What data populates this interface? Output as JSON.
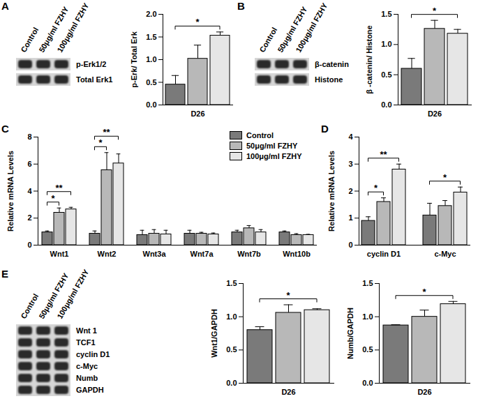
{
  "panel_labels": [
    "A",
    "B",
    "C",
    "D",
    "E"
  ],
  "blots": [
    {
      "lanes": [
        "Control",
        "50μg/ml FZHY",
        "100μg/ml FZHY"
      ],
      "bands": [
        "p-Erk1/2",
        "Total Erk1"
      ]
    },
    {
      "lanes": [
        "Control",
        "50μg/ml FZHY",
        "100μg/ml FZHY"
      ],
      "bands": [
        "β-catenin",
        "Histone"
      ]
    },
    {
      "lanes": [
        "Control",
        "50μg/ml FZHY",
        "100μg/ml FZHY"
      ],
      "bands": [
        "Wnt 1",
        "TCF1",
        "cyclin D1",
        "c-Myc",
        "Numb",
        "GAPDH"
      ]
    }
  ],
  "chart_data": [
    {
      "type": "bar",
      "ylabel": "p-Erk/ Total Erk",
      "categories": [
        "D26"
      ],
      "series": [
        {
          "name": "Control",
          "color": "#7a7a7a",
          "values": [
            0.45
          ],
          "errors": [
            0.2
          ]
        },
        {
          "name": "50μg/ml FZHY",
          "color": "#b8b8b8",
          "values": [
            1.02
          ],
          "errors": [
            0.3
          ]
        },
        {
          "name": "100μg/ml FZHY",
          "color": "#e6e6e6",
          "values": [
            1.53
          ],
          "errors": [
            0.08
          ]
        }
      ],
      "ylim": [
        0,
        2
      ],
      "yticks": [
        {
          "value": 0,
          "label": "0.0"
        },
        {
          "value": 0.5,
          "label": "0.5"
        },
        {
          "value": 1,
          "label": "1.0"
        },
        {
          "value": 1.5,
          "label": "1.5"
        },
        {
          "value": 2,
          "label": "2.0"
        }
      ],
      "annotations": [
        {
          "category": "D26",
          "from": "Control",
          "to": "100μg/ml FZHY",
          "label": "*"
        }
      ]
    },
    {
      "type": "bar",
      "ylabel": "β -catenin/ Histone",
      "categories": [
        "D26"
      ],
      "series": [
        {
          "name": "Control",
          "color": "#7a7a7a",
          "values": [
            0.6
          ],
          "errors": [
            0.17
          ]
        },
        {
          "name": "50μg/ml FZHY",
          "color": "#b8b8b8",
          "values": [
            1.26
          ],
          "errors": [
            0.14
          ]
        },
        {
          "name": "100μg/ml FZHY",
          "color": "#e6e6e6",
          "values": [
            1.18
          ],
          "errors": [
            0.07
          ]
        }
      ],
      "ylim": [
        0,
        1.5
      ],
      "yticks": [
        {
          "value": 0,
          "label": "0.0"
        },
        {
          "value": 0.5,
          "label": "0.5"
        },
        {
          "value": 1,
          "label": "1.0"
        },
        {
          "value": 1.5,
          "label": "1.5"
        }
      ],
      "annotations": [
        {
          "category": "D26",
          "from": "Control",
          "to": "100μg/ml FZHY",
          "label": "*"
        }
      ]
    },
    {
      "type": "bar",
      "ylabel": "Relative mRNA Levels",
      "categories": [
        "Wnt1",
        "Wnt2",
        "Wnt3a",
        "Wnt7a",
        "Wnt7b",
        "Wnt10b"
      ],
      "series": [
        {
          "name": "Control",
          "color": "#7a7a7a",
          "values": [
            0.95,
            0.85,
            0.75,
            0.85,
            0.95,
            0.95
          ],
          "errors": [
            0.1,
            0.2,
            0.35,
            0.25,
            0.15,
            0.1
          ]
        },
        {
          "name": "50μg/ml FZHY",
          "color": "#b8b8b8",
          "values": [
            2.4,
            5.55,
            0.85,
            0.85,
            1.25,
            0.75
          ],
          "errors": [
            0.35,
            1.3,
            0.3,
            0.1,
            0.2,
            0.1
          ]
        },
        {
          "name": "100μg/ml FZHY",
          "color": "#e6e6e6",
          "values": [
            2.65,
            6.05,
            0.8,
            0.8,
            0.95,
            0.75
          ],
          "errors": [
            0.15,
            0.7,
            0.3,
            0.1,
            0.2,
            0.05
          ]
        }
      ],
      "ylim": [
        0,
        8
      ],
      "yticks": [
        0,
        2,
        4,
        6,
        8
      ],
      "legend": "top-right",
      "annotations": [
        {
          "category": "Wnt1",
          "from": "Control",
          "to": "50μg/ml FZHY",
          "label": "*"
        },
        {
          "category": "Wnt1",
          "from": "Control",
          "to": "100μg/ml FZHY",
          "label": "**"
        },
        {
          "category": "Wnt2",
          "from": "Control",
          "to": "50μg/ml FZHY",
          "label": "*"
        },
        {
          "category": "Wnt2",
          "from": "Control",
          "to": "100μg/ml FZHY",
          "label": "**"
        }
      ]
    },
    {
      "type": "bar",
      "ylabel": "Relative mRNA Levels",
      "categories": [
        "cyclin D1",
        "c-Myc"
      ],
      "series": [
        {
          "name": "Control",
          "color": "#7a7a7a",
          "values": [
            0.9,
            1.1
          ],
          "errors": [
            0.15,
            0.45
          ]
        },
        {
          "name": "50μg/ml FZHY",
          "color": "#b8b8b8",
          "values": [
            1.6,
            1.45
          ],
          "errors": [
            0.15,
            0.2
          ]
        },
        {
          "name": "100μg/ml FZHY",
          "color": "#e6e6e6",
          "values": [
            2.8,
            1.95
          ],
          "errors": [
            0.2,
            0.2
          ]
        }
      ],
      "ylim": [
        0,
        4
      ],
      "yticks": [
        0,
        1,
        2,
        3,
        4
      ],
      "annotations": [
        {
          "category": "cyclin D1",
          "from": "Control",
          "to": "50μg/ml FZHY",
          "label": "*"
        },
        {
          "category": "cyclin D1",
          "from": "Control",
          "to": "100μg/ml FZHY",
          "label": "**"
        },
        {
          "category": "c-Myc",
          "from": "Control",
          "to": "100μg/ml FZHY",
          "label": "*"
        }
      ]
    },
    {
      "type": "bar",
      "ylabel": "Wnt1/GAPDH",
      "categories": [
        "D26"
      ],
      "series": [
        {
          "name": "Control",
          "color": "#7a7a7a",
          "values": [
            0.8
          ],
          "errors": [
            0.05
          ]
        },
        {
          "name": "50μg/ml FZHY",
          "color": "#b8b8b8",
          "values": [
            1.06
          ],
          "errors": [
            0.12
          ]
        },
        {
          "name": "100μg/ml FZHY",
          "color": "#e6e6e6",
          "values": [
            1.1
          ],
          "errors": [
            0.02
          ]
        }
      ],
      "ylim": [
        0,
        1.5
      ],
      "yticks": [
        {
          "value": 0,
          "label": "0.0"
        },
        {
          "value": 0.5,
          "label": "0.5"
        },
        {
          "value": 1,
          "label": "1.0"
        },
        {
          "value": 1.5,
          "label": "1.5"
        }
      ],
      "annotations": [
        {
          "category": "D26",
          "from": "Control",
          "to": "100μg/ml FZHY",
          "label": "*"
        }
      ]
    },
    {
      "type": "bar",
      "ylabel": "Numb/GAPDH",
      "categories": [
        "D26"
      ],
      "series": [
        {
          "name": "Control",
          "color": "#7a7a7a",
          "values": [
            0.87
          ],
          "errors": [
            0.01
          ]
        },
        {
          "name": "50μg/ml FZHY",
          "color": "#b8b8b8",
          "values": [
            1.0
          ],
          "errors": [
            0.1
          ]
        },
        {
          "name": "100μg/ml FZHY",
          "color": "#e6e6e6",
          "values": [
            1.19
          ],
          "errors": [
            0.04
          ]
        }
      ],
      "ylim": [
        0,
        1.5
      ],
      "yticks": [
        {
          "value": 0,
          "label": "0.0"
        },
        {
          "value": 0.5,
          "label": "0.5"
        },
        {
          "value": 1,
          "label": "1.0"
        },
        {
          "value": 1.5,
          "label": "1.5"
        }
      ],
      "annotations": [
        {
          "category": "D26",
          "from": "Control",
          "to": "100μg/ml FZHY",
          "label": "*"
        }
      ]
    }
  ]
}
